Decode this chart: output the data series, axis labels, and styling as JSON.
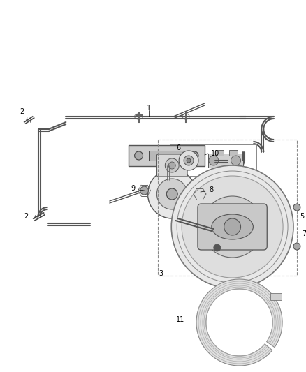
{
  "background_color": "#ffffff",
  "fig_width": 4.38,
  "fig_height": 5.33,
  "dpi": 100,
  "line_color": "#555555",
  "line_color2": "#888888"
}
